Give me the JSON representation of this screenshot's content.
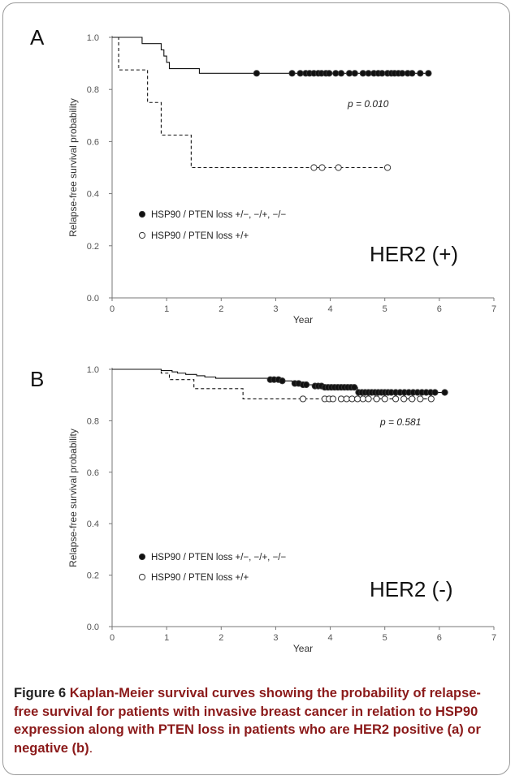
{
  "figure": {
    "caption_label": "Figure 6",
    "caption_text": "Kaplan-Meier survival curves showing the probability of relapse-free survival for patients with invasive breast cancer in relation to HSP90 expression along with PTEN loss in patients who are HER2 positive (a) or negative (b)",
    "caption_end": "."
  },
  "chart_data": [
    {
      "panel": "A",
      "type": "line",
      "subtype": "kaplan-meier step",
      "xlabel": "Year",
      "ylabel": "Relapse-free survival probability",
      "xlim": [
        0,
        7
      ],
      "ylim": [
        0,
        1.0
      ],
      "x_ticks": [
        "0",
        "1",
        "2",
        "3",
        "4",
        "5",
        "6",
        "7"
      ],
      "y_ticks": [
        "0.0",
        "0.2",
        "0.4",
        "0.6",
        "0.8",
        "1.0"
      ],
      "grid": false,
      "annotation": "p = 0.010",
      "group_label": "HER2 (+)",
      "legend_position": "lower-left",
      "series": [
        {
          "name": "HSP90 / PTEN loss  +/−,  −/+,  −/−",
          "marker": "filled-circle",
          "line_style": "solid",
          "steps": [
            [
              0,
              1.0
            ],
            [
              0.55,
              0.976
            ],
            [
              0.9,
              0.952
            ],
            [
              0.95,
              0.928
            ],
            [
              1.0,
              0.904
            ],
            [
              1.05,
              0.88
            ],
            [
              1.6,
              0.862
            ],
            [
              5.85,
              0.862
            ]
          ],
          "censored": [
            2.65,
            3.3,
            3.45,
            3.55,
            3.62,
            3.7,
            3.78,
            3.84,
            3.92,
            3.98,
            4.1,
            4.2,
            4.35,
            4.45,
            4.6,
            4.7,
            4.8,
            4.88,
            4.95,
            5.05,
            5.12,
            5.18,
            5.25,
            5.32,
            5.42,
            5.5,
            5.65,
            5.8
          ]
        },
        {
          "name": "HSP90 / PTEN loss  +/+",
          "marker": "open-circle",
          "line_style": "dashed",
          "steps": [
            [
              0,
              1.0
            ],
            [
              0.12,
              0.875
            ],
            [
              0.65,
              0.75
            ],
            [
              0.9,
              0.625
            ],
            [
              1.45,
              0.5
            ],
            [
              5.05,
              0.5
            ]
          ],
          "censored": [
            3.7,
            3.85,
            4.15,
            5.05
          ]
        }
      ]
    },
    {
      "panel": "B",
      "type": "line",
      "subtype": "kaplan-meier step",
      "xlabel": "Year",
      "ylabel": "Relapse-free survival probability",
      "xlim": [
        0,
        7
      ],
      "ylim": [
        0,
        1.0
      ],
      "x_ticks": [
        "0",
        "1",
        "2",
        "3",
        "4",
        "5",
        "6",
        "7"
      ],
      "y_ticks": [
        "0.0",
        "0.2",
        "0.4",
        "0.6",
        "0.8",
        "1.0"
      ],
      "grid": false,
      "annotation": "p = 0.581",
      "group_label": "HER2 (-)",
      "legend_position": "lower-left",
      "series": [
        {
          "name": "HSP90 / PTEN loss  +/−,  −/+,  −/−",
          "marker": "filled-circle",
          "line_style": "solid",
          "steps": [
            [
              0,
              1.0
            ],
            [
              0.9,
              0.995
            ],
            [
              1.1,
              0.99
            ],
            [
              1.2,
              0.985
            ],
            [
              1.35,
              0.98
            ],
            [
              1.55,
              0.975
            ],
            [
              1.7,
              0.97
            ],
            [
              1.9,
              0.965
            ],
            [
              2.9,
              0.96
            ],
            [
              3.1,
              0.955
            ],
            [
              3.3,
              0.945
            ],
            [
              3.5,
              0.94
            ],
            [
              3.7,
              0.935
            ],
            [
              3.85,
              0.93
            ],
            [
              4.5,
              0.91
            ],
            [
              6.1,
              0.91
            ]
          ],
          "censored": [
            2.9,
            2.97,
            3.05,
            3.12,
            3.35,
            3.42,
            3.5,
            3.56,
            3.72,
            3.78,
            3.84,
            3.9,
            3.96,
            4.02,
            4.08,
            4.14,
            4.2,
            4.26,
            4.32,
            4.38,
            4.44,
            4.52,
            4.58,
            4.64,
            4.7,
            4.76,
            4.82,
            4.88,
            4.94,
            5.0,
            5.06,
            5.12,
            5.2,
            5.28,
            5.36,
            5.44,
            5.52,
            5.6,
            5.68,
            5.76,
            5.84,
            5.92,
            6.1
          ]
        },
        {
          "name": "HSP90 / PTEN loss  +/+",
          "marker": "open-circle",
          "line_style": "dashed",
          "steps": [
            [
              0,
              1.0
            ],
            [
              0.9,
              0.985
            ],
            [
              1.05,
              0.96
            ],
            [
              1.5,
              0.925
            ],
            [
              2.4,
              0.885
            ],
            [
              5.85,
              0.885
            ]
          ],
          "censored": [
            3.5,
            3.9,
            3.98,
            4.05,
            4.2,
            4.3,
            4.4,
            4.5,
            4.6,
            4.7,
            4.85,
            5.0,
            5.2,
            5.35,
            5.5,
            5.65,
            5.85
          ]
        }
      ]
    }
  ]
}
